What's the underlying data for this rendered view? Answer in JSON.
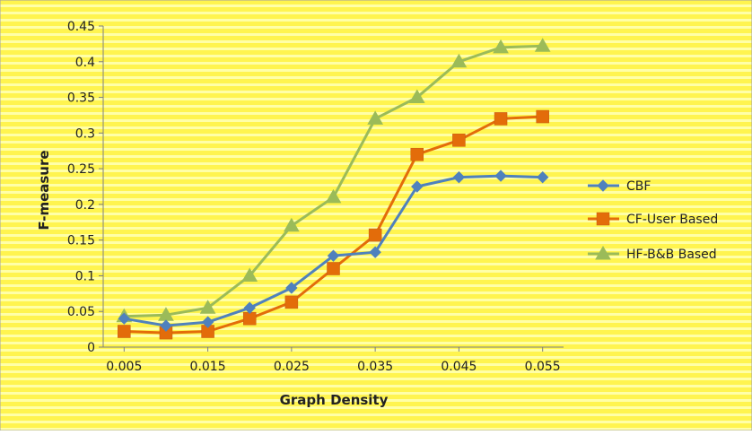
{
  "chart_data": {
    "type": "line",
    "xlabel": "Graph Density",
    "ylabel": "F-measure",
    "x": [
      0.005,
      0.01,
      0.015,
      0.02,
      0.025,
      0.03,
      0.035,
      0.04,
      0.045,
      0.05,
      0.055
    ],
    "xticks": [
      "0.005",
      "0.015",
      "0.025",
      "0.035",
      "0.045",
      "0.055"
    ],
    "xtick_values": [
      0.005,
      0.015,
      0.025,
      0.035,
      0.045,
      0.055
    ],
    "yticks": [
      "0",
      "0.05",
      "0.1",
      "0.15",
      "0.2",
      "0.25",
      "0.3",
      "0.35",
      "0.4",
      "0.45"
    ],
    "ylim": [
      0,
      0.45
    ],
    "xlim": [
      0.0025,
      0.0575
    ],
    "grid": false,
    "legend_position": "right",
    "series": [
      {
        "name": "CBF",
        "color": "#4f81bd",
        "marker": "diamond",
        "values": [
          0.04,
          0.03,
          0.035,
          0.055,
          0.083,
          0.128,
          0.133,
          0.225,
          0.238,
          0.24,
          0.238
        ]
      },
      {
        "name": "CF-User Based",
        "color": "#e36c0a",
        "marker": "square",
        "values": [
          0.022,
          0.02,
          0.022,
          0.04,
          0.063,
          0.11,
          0.157,
          0.27,
          0.29,
          0.32,
          0.323
        ]
      },
      {
        "name": "HF-B&B Based",
        "color": "#9bbb59",
        "marker": "triangle",
        "values": [
          0.043,
          0.045,
          0.055,
          0.1,
          0.17,
          0.21,
          0.32,
          0.35,
          0.4,
          0.42,
          0.422
        ]
      }
    ],
    "background_color": "#fff44f",
    "stripe_color": "#ffffa8"
  }
}
